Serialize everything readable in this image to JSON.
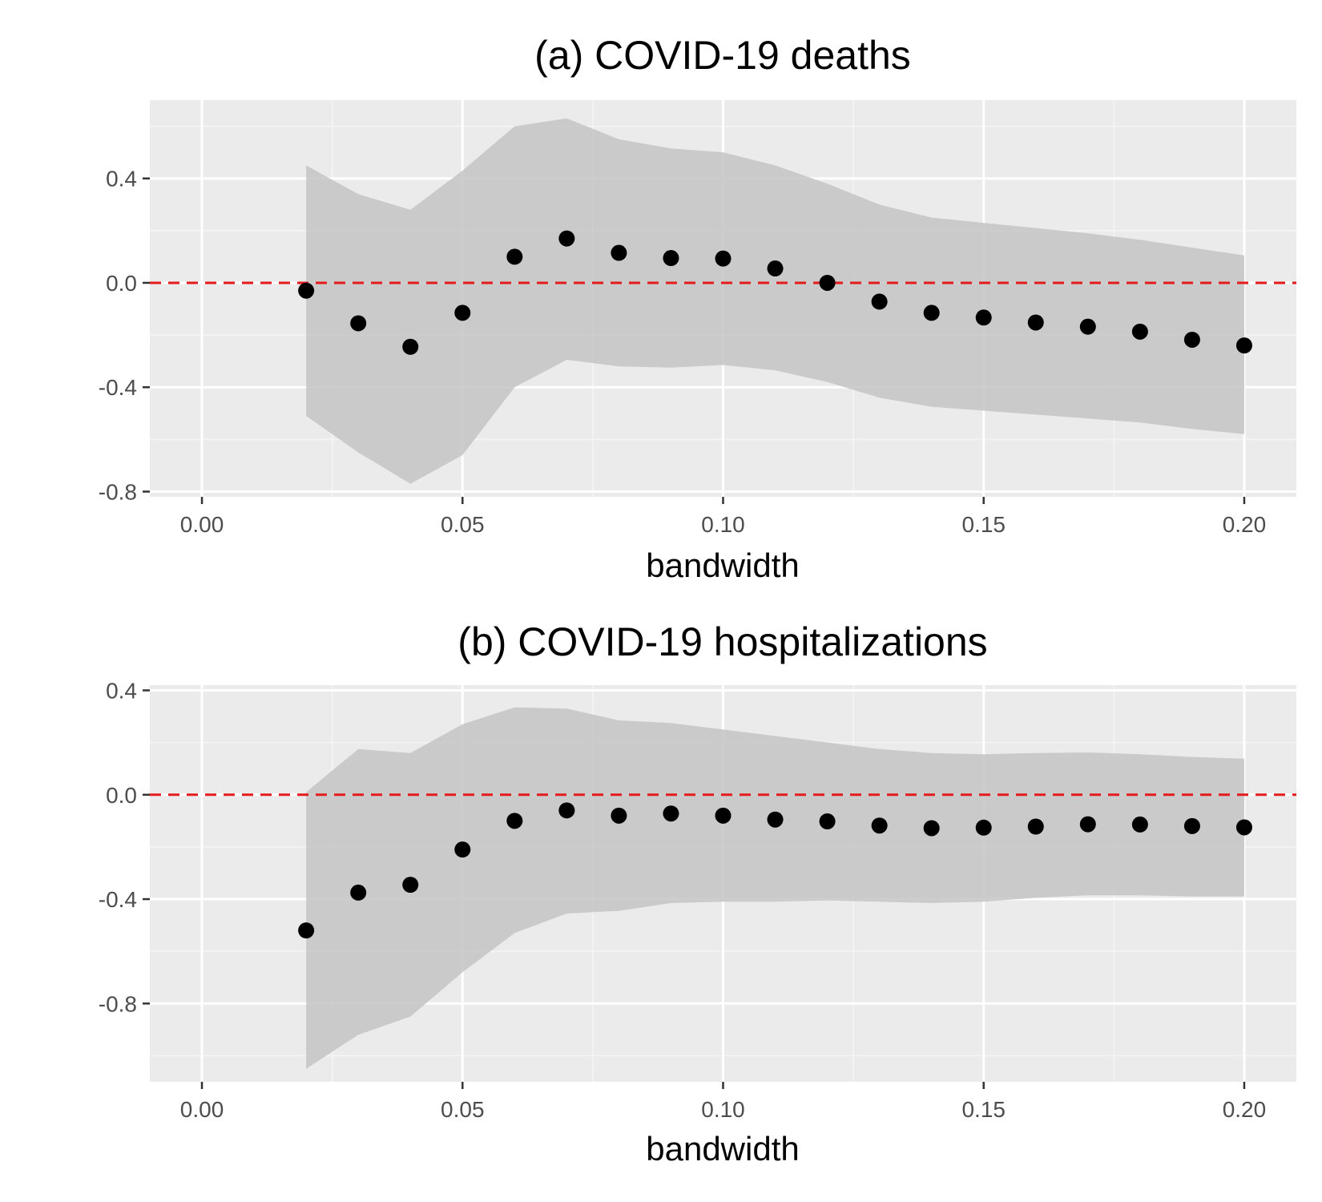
{
  "colors": {
    "panel_background": "#ebebeb",
    "grid_major": "#ffffff",
    "grid_minor": "#f5f5f5",
    "confidence_band": "#c4c4c4",
    "points": "#000000",
    "reference_line": "#e41a1c",
    "tick_text": "#4d4d4d",
    "tick_mark": "#333333"
  },
  "chart_data": [
    {
      "type": "scatter",
      "title": "(a) COVID-19 deaths",
      "xlabel": "bandwidth",
      "ylabel": "",
      "xlim": [
        -0.01,
        0.21
      ],
      "ylim": [
        -0.82,
        0.7
      ],
      "x_ticks": [
        "0.00",
        "0.05",
        "0.10",
        "0.15",
        "0.20"
      ],
      "x_tick_values": [
        0.0,
        0.05,
        0.1,
        0.15,
        0.2
      ],
      "y_ticks": [
        "0.4",
        "0.0",
        "-0.4",
        "-0.8"
      ],
      "y_tick_values": [
        0.4,
        0.0,
        -0.4,
        -0.8
      ],
      "reference_line": {
        "y": 0,
        "style": "dashed",
        "color": "#e41a1c"
      },
      "grid": true,
      "x": [
        0.02,
        0.03,
        0.04,
        0.05,
        0.06,
        0.07,
        0.08,
        0.09,
        0.1,
        0.11,
        0.12,
        0.13,
        0.14,
        0.15,
        0.16,
        0.17,
        0.18,
        0.19,
        0.2
      ],
      "y": [
        -0.03,
        -0.155,
        -0.245,
        -0.115,
        0.1,
        0.17,
        0.115,
        0.095,
        0.093,
        0.055,
        0.0,
        -0.072,
        -0.115,
        -0.133,
        -0.152,
        -0.168,
        -0.187,
        -0.218,
        -0.24
      ],
      "ci_lower": [
        -0.51,
        -0.65,
        -0.77,
        -0.66,
        -0.4,
        -0.295,
        -0.32,
        -0.325,
        -0.315,
        -0.335,
        -0.38,
        -0.44,
        -0.475,
        -0.49,
        -0.505,
        -0.52,
        -0.535,
        -0.56,
        -0.58
      ],
      "ci_upper": [
        0.45,
        0.34,
        0.28,
        0.43,
        0.6,
        0.63,
        0.55,
        0.515,
        0.5,
        0.45,
        0.38,
        0.3,
        0.25,
        0.23,
        0.21,
        0.19,
        0.165,
        0.135,
        0.105
      ]
    },
    {
      "type": "scatter",
      "title": "(b) COVID-19 hospitalizations",
      "xlabel": "bandwidth",
      "ylabel": "",
      "xlim": [
        -0.01,
        0.21
      ],
      "ylim": [
        -1.1,
        0.42
      ],
      "x_ticks": [
        "0.00",
        "0.05",
        "0.10",
        "0.15",
        "0.20"
      ],
      "x_tick_values": [
        0.0,
        0.05,
        0.1,
        0.15,
        0.2
      ],
      "y_ticks": [
        "0.4",
        "0.0",
        "-0.4",
        "-0.8"
      ],
      "y_tick_values": [
        0.4,
        0.0,
        -0.4,
        -0.8
      ],
      "reference_line": {
        "y": 0,
        "style": "dashed",
        "color": "#e41a1c"
      },
      "grid": true,
      "x": [
        0.02,
        0.03,
        0.04,
        0.05,
        0.06,
        0.07,
        0.08,
        0.09,
        0.1,
        0.11,
        0.12,
        0.13,
        0.14,
        0.15,
        0.16,
        0.17,
        0.18,
        0.19,
        0.2
      ],
      "y": [
        -0.52,
        -0.375,
        -0.345,
        -0.21,
        -0.1,
        -0.06,
        -0.08,
        -0.072,
        -0.08,
        -0.095,
        -0.102,
        -0.118,
        -0.128,
        -0.126,
        -0.122,
        -0.113,
        -0.114,
        -0.12,
        -0.125
      ],
      "ci_lower": [
        -1.05,
        -0.92,
        -0.85,
        -0.68,
        -0.53,
        -0.455,
        -0.445,
        -0.415,
        -0.41,
        -0.41,
        -0.405,
        -0.41,
        -0.415,
        -0.41,
        -0.395,
        -0.385,
        -0.385,
        -0.39,
        -0.39
      ],
      "ci_upper": [
        0.01,
        0.175,
        0.16,
        0.27,
        0.335,
        0.33,
        0.285,
        0.275,
        0.25,
        0.225,
        0.2,
        0.175,
        0.16,
        0.155,
        0.16,
        0.162,
        0.155,
        0.145,
        0.138
      ]
    }
  ]
}
